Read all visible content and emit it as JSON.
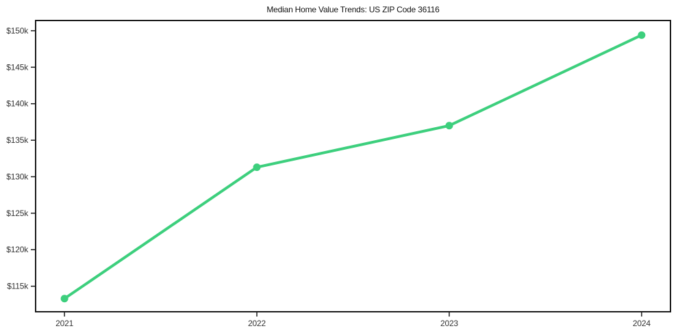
{
  "chart_data": {
    "type": "line",
    "title": "Median Home Value Trends: US ZIP Code 36116",
    "xlabel": "",
    "ylabel": "",
    "categories": [
      "2021",
      "2022",
      "2023",
      "2024"
    ],
    "x_values": [
      2021,
      2022,
      2023,
      2024
    ],
    "values": [
      113300,
      131300,
      137000,
      149400
    ],
    "y_ticks": [
      115000,
      120000,
      125000,
      130000,
      135000,
      140000,
      145000,
      150000
    ],
    "y_tick_labels": [
      "$115k",
      "$120k",
      "$125k",
      "$130k",
      "$135k",
      "$140k",
      "$145k",
      "$150k"
    ],
    "xlim": [
      2020.85,
      2024.15
    ],
    "ylim": [
      111500,
      151400
    ],
    "grid": false,
    "legend": "none",
    "style": {
      "line_color": "#3dcf7d",
      "marker": "circle",
      "marker_radius": 5.5,
      "line_width": 4,
      "axis_color": "#1a1a1a",
      "tick_label_color": "#333333",
      "background": "#ffffff"
    }
  }
}
